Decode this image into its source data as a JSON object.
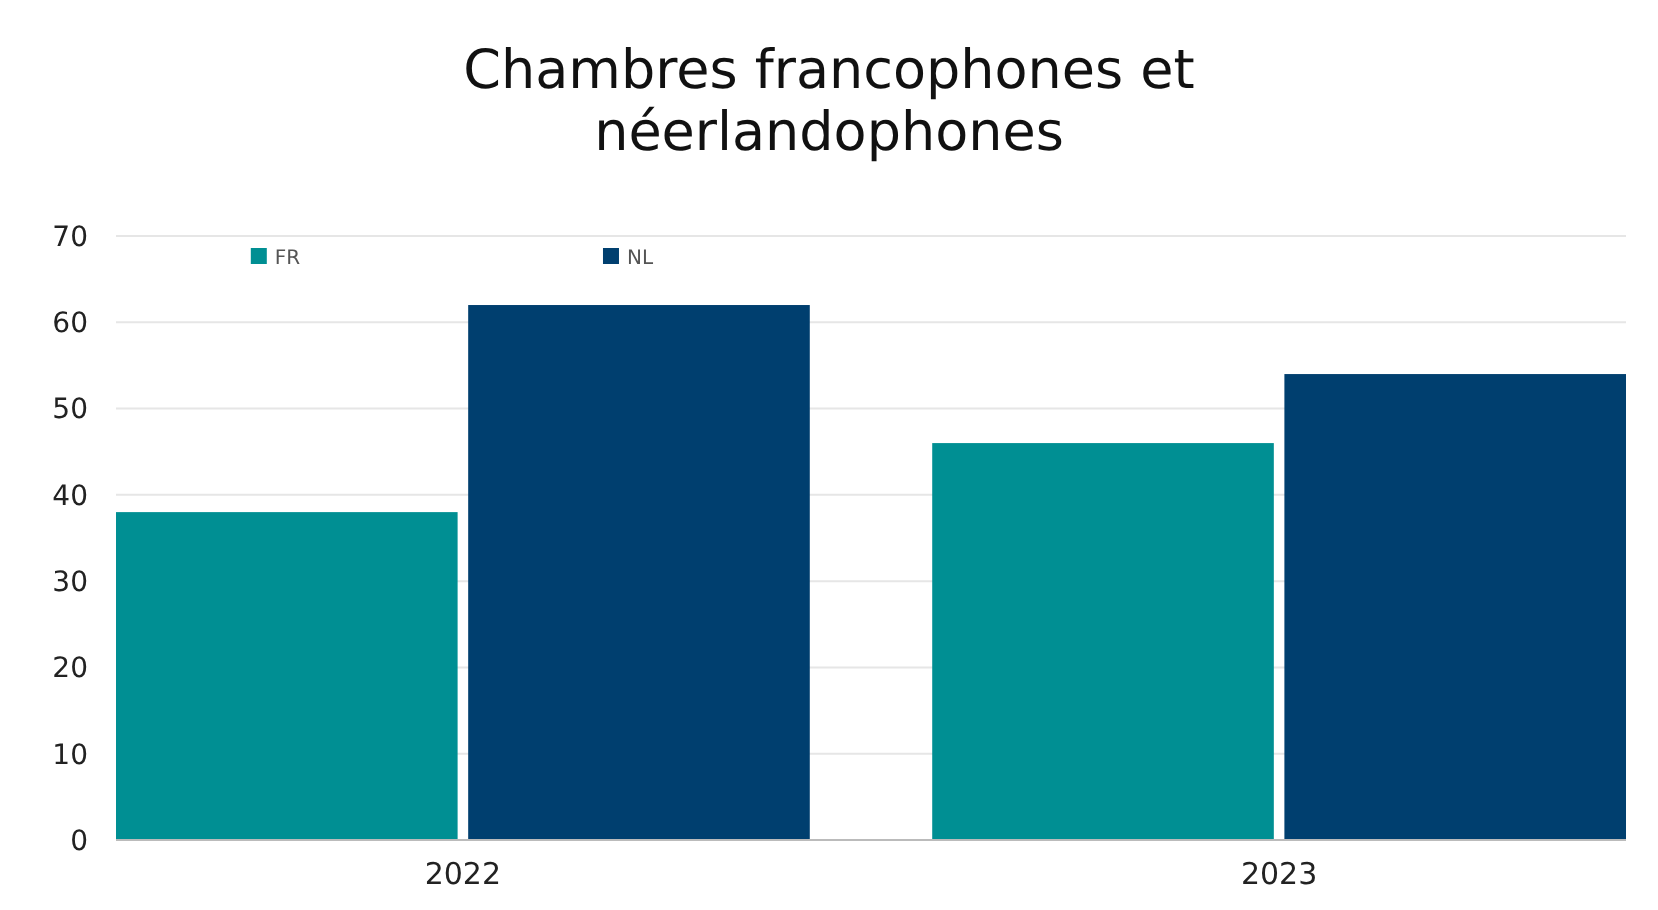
{
  "chart_data": {
    "type": "bar",
    "title": "Chambres francophones et\nnéerlandophones",
    "categories": [
      "2022",
      "2023"
    ],
    "series": [
      {
        "name": "FR",
        "color": "#008f93",
        "values": [
          38,
          46
        ]
      },
      {
        "name": "NL",
        "color": "#003f6f",
        "values": [
          62,
          54
        ]
      }
    ],
    "ylim": [
      0,
      70
    ],
    "yticks": [
      0,
      10,
      20,
      30,
      40,
      50,
      60,
      70
    ],
    "grid": "y",
    "legend": "top left"
  }
}
